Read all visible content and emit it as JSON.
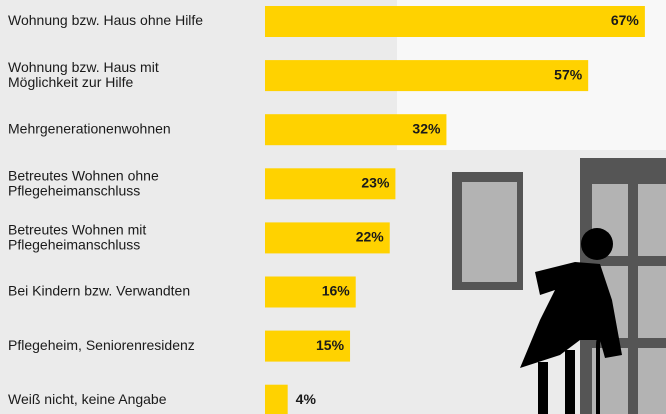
{
  "chart_data": {
    "type": "bar",
    "orientation": "horizontal",
    "categories": [
      "Wohnung bzw. Haus ohne Hilfe",
      "Wohnung bzw. Haus mit\nMöglichkeit zur Hilfe",
      "Mehrgenerationenwohnen",
      "Betreutes Wohnen ohne\nPflegeheimanschluss",
      "Betreutes Wohnen mit\nPflegeheimanschluss",
      "Bei Kindern bzw. Verwandten",
      "Pflegeheim, Seniorenresidenz",
      "Weiß nicht, keine Angabe"
    ],
    "values": [
      67,
      57,
      32,
      23,
      22,
      16,
      15,
      4
    ],
    "value_labels": [
      "67%",
      "57%",
      "32%",
      "23%",
      "22%",
      "16%",
      "15%",
      "4%"
    ],
    "color": "#ffd200",
    "xlim": [
      0,
      100
    ]
  }
}
